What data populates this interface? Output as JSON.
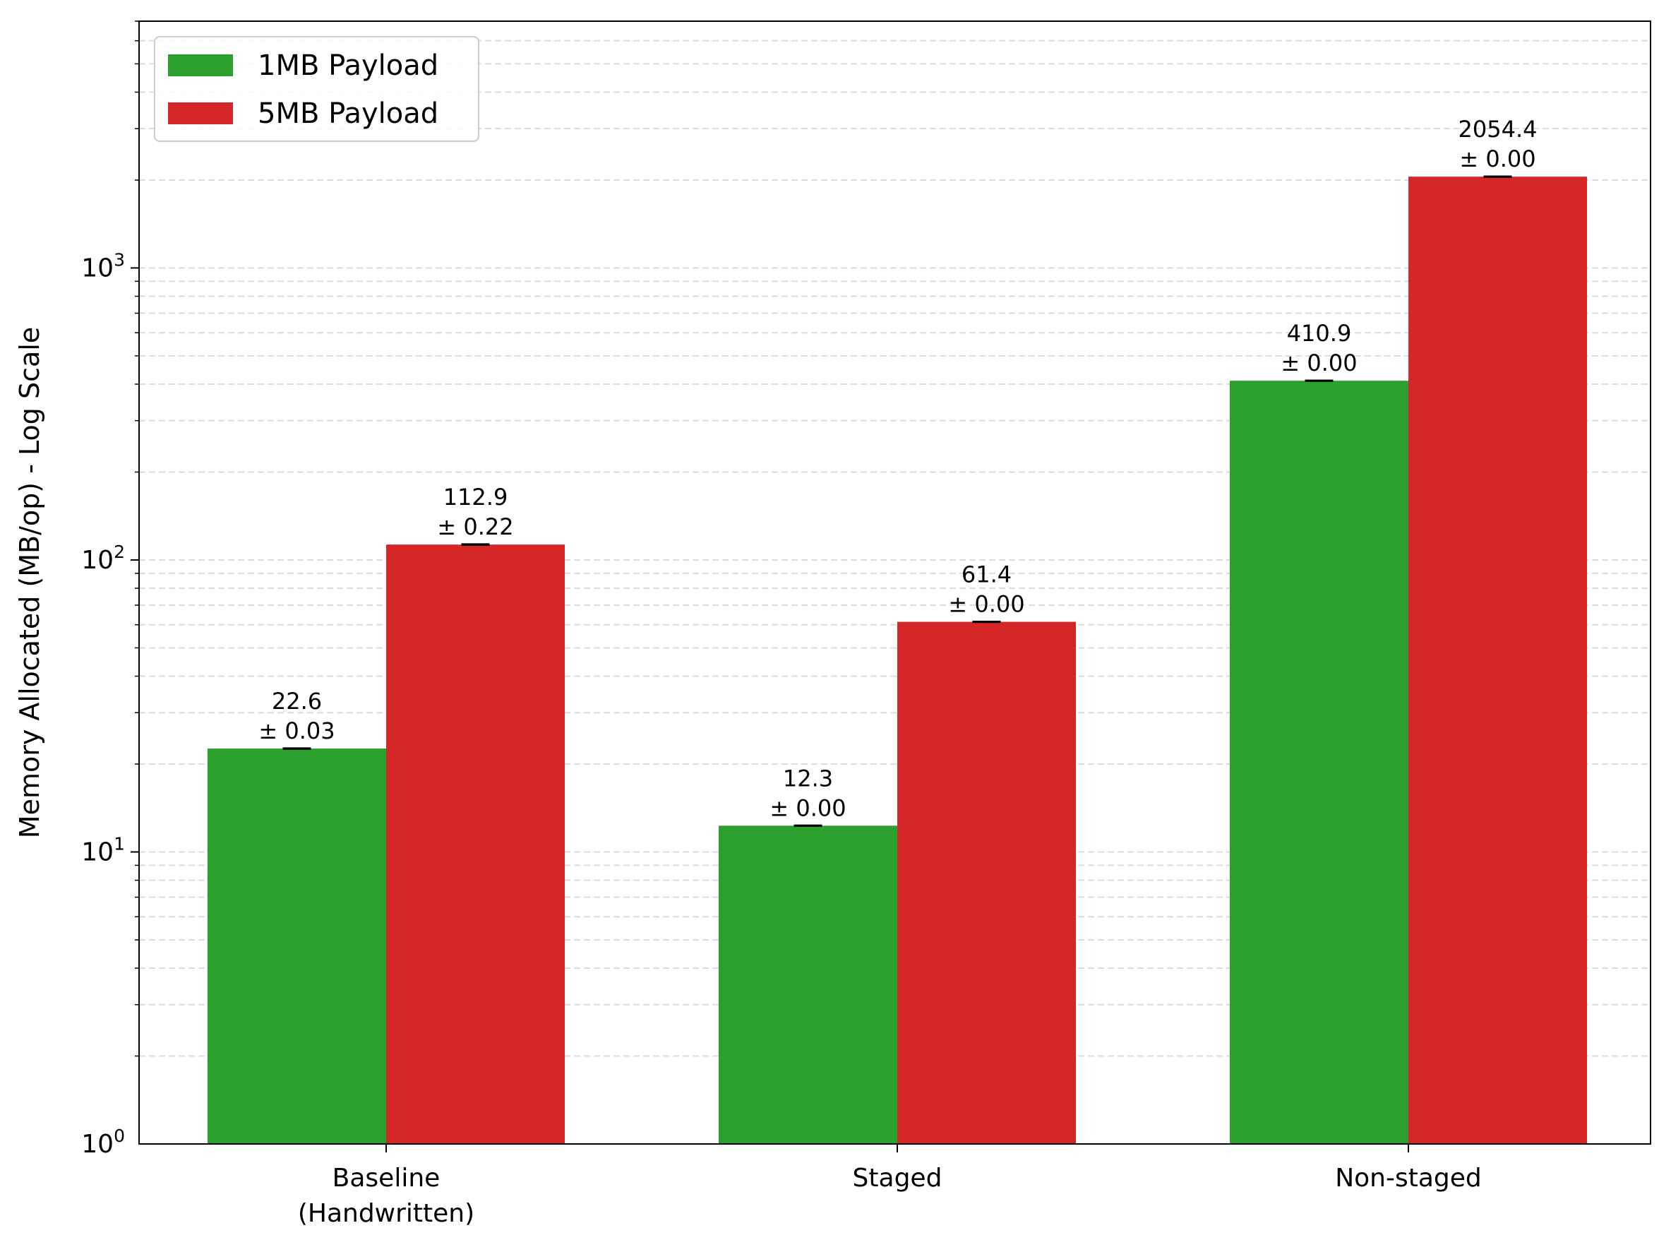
{
  "chart_data": {
    "type": "bar",
    "title": "",
    "xlabel": "",
    "ylabel": "Memory Allocated (MB/op) - Log Scale",
    "yscale": "log",
    "ylim": [
      1,
      7000
    ],
    "grid": "horizontal dashed (major and minor)",
    "legend_position": "top-left",
    "categories": [
      [
        "Baseline",
        "(Handwritten)"
      ],
      [
        "Staged"
      ],
      [
        "Non-staged"
      ]
    ],
    "y_ticks": [
      {
        "value": 1,
        "base": "10",
        "exponent": "0"
      },
      {
        "value": 10,
        "base": "10",
        "exponent": "1"
      },
      {
        "value": 100,
        "base": "10",
        "exponent": "2"
      },
      {
        "value": 1000,
        "base": "10",
        "exponent": "3"
      }
    ],
    "series": [
      {
        "name": "1MB Payload",
        "color": "#2ca02c",
        "values": [
          22.6,
          12.3,
          410.9
        ],
        "errors": [
          0.03,
          0.0,
          0.0
        ],
        "value_labels": [
          "22.6",
          "12.3",
          "410.9"
        ],
        "error_labels": [
          "± 0.03",
          "± 0.00",
          "± 0.00"
        ]
      },
      {
        "name": "5MB Payload",
        "color": "#d62728",
        "values": [
          112.9,
          61.4,
          2054.4
        ],
        "errors": [
          0.22,
          0.0,
          0.0
        ],
        "value_labels": [
          "112.9",
          "61.4",
          "2054.4"
        ],
        "error_labels": [
          "± 0.22",
          "± 0.00",
          "± 0.00"
        ]
      }
    ]
  }
}
